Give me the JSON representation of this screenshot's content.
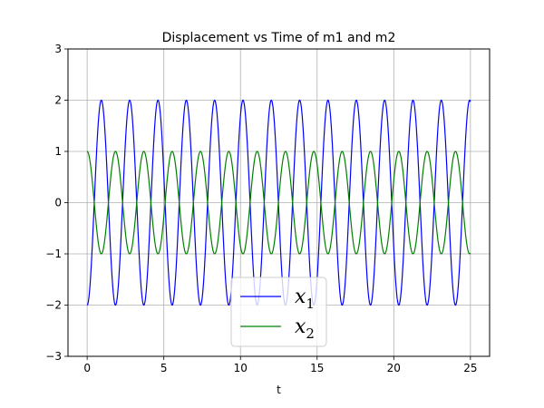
{
  "chart_data": {
    "type": "line",
    "title": "Displacement vs Time of m1 and m2",
    "xlabel": "t",
    "ylabel": "",
    "xlim": [
      -1.25,
      26.25
    ],
    "ylim": [
      -3,
      3
    ],
    "xticks": [
      0,
      5,
      10,
      15,
      20,
      25
    ],
    "yticks": [
      -3,
      -2,
      -1,
      0,
      1,
      2,
      3
    ],
    "xtick_labels": [
      "0",
      "5",
      "10",
      "15",
      "20",
      "25"
    ],
    "ytick_labels": [
      "−3",
      "−2",
      "−1",
      "0",
      "1",
      "2",
      "3"
    ],
    "grid": true,
    "legend_position": "lower-center",
    "series": [
      {
        "name": "x1",
        "legend_main": "x",
        "legend_sub": "1",
        "color": "#0000ff",
        "formula": "-2*cos(3.4*t)",
        "t_range": [
          0,
          25
        ],
        "amplitude": 2,
        "period": 1.85,
        "phase_note": "starts at -2"
      },
      {
        "name": "x2",
        "legend_main": "x",
        "legend_sub": "2",
        "color": "#008000",
        "formula": "cos(3.4*t)",
        "t_range": [
          0,
          25
        ],
        "amplitude": 1,
        "period": 1.85,
        "phase_note": "starts at 1"
      }
    ]
  }
}
